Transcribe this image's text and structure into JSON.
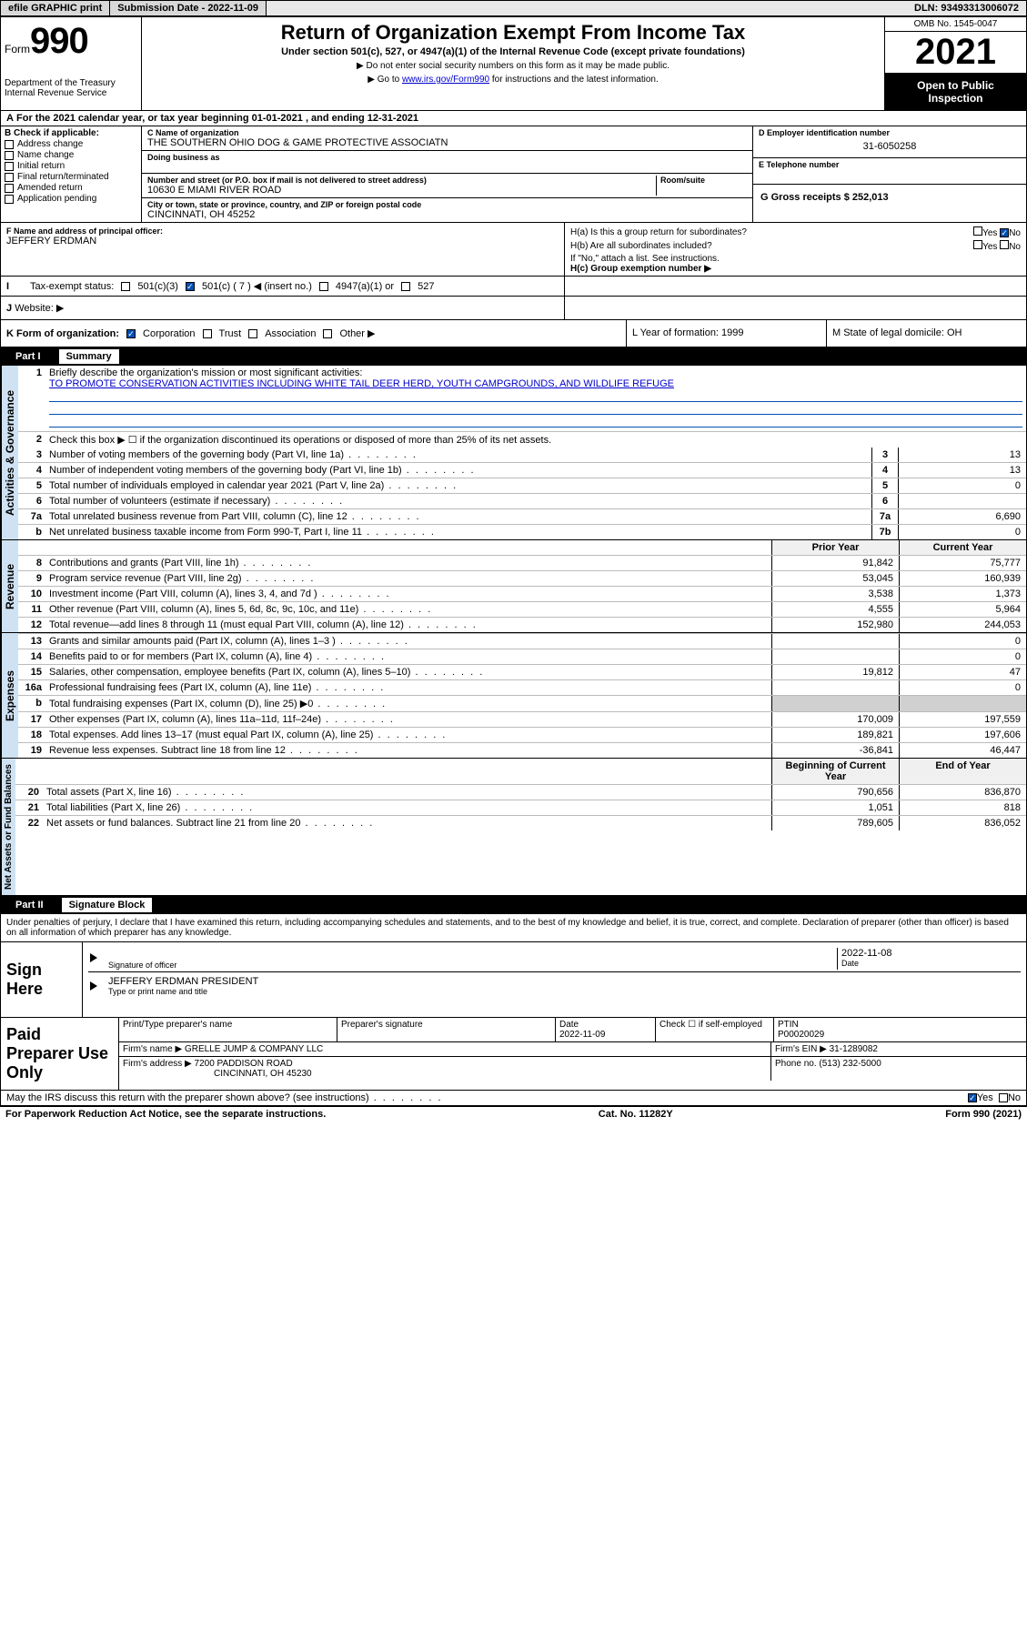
{
  "topbar": {
    "efile": "efile GRAPHIC print",
    "submission_label": "Submission Date - 2022-11-09",
    "dln_label": "DLN: 93493313006072"
  },
  "header": {
    "form_word": "Form",
    "form_num": "990",
    "dept": "Department of the Treasury\nInternal Revenue Service",
    "title": "Return of Organization Exempt From Income Tax",
    "sub1": "Under section 501(c), 527, or 4947(a)(1) of the Internal Revenue Code (except private foundations)",
    "sub2": "▶ Do not enter social security numbers on this form as it may be made public.",
    "sub3_pre": "▶ Go to ",
    "sub3_link": "www.irs.gov/Form990",
    "sub3_post": " for instructions and the latest information.",
    "omb": "OMB No. 1545-0047",
    "year": "2021",
    "inspect": "Open to Public Inspection"
  },
  "lineA": "For the 2021 calendar year, or tax year beginning 01-01-2021   , and ending 12-31-2021",
  "boxB": {
    "title": "B Check if applicable:",
    "items": [
      "Address change",
      "Name change",
      "Initial return",
      "Final return/terminated",
      "Amended return",
      "Application pending"
    ]
  },
  "boxC": {
    "name_label": "C Name of organization",
    "name": "THE SOUTHERN OHIO DOG & GAME PROTECTIVE ASSOCIATN",
    "dba_label": "Doing business as",
    "addr_label": "Number and street (or P.O. box if mail is not delivered to street address)",
    "room_label": "Room/suite",
    "addr": "10630 E MIAMI RIVER ROAD",
    "city_label": "City or town, state or province, country, and ZIP or foreign postal code",
    "city": "CINCINNATI, OH  45252"
  },
  "boxD": {
    "label": "D Employer identification number",
    "ein": "31-6050258",
    "E_label": "E Telephone number",
    "G_label": "G Gross receipts $ 252,013"
  },
  "boxF": {
    "label": "F Name and address of principal officer:",
    "name": "JEFFERY ERDMAN"
  },
  "boxH": {
    "a_label": "H(a)  Is this a group return for subordinates?",
    "a_yes": "Yes",
    "a_no": "No",
    "b_label": "H(b)  Are all subordinates included?",
    "b_note": "If \"No,\" attach a list. See instructions.",
    "c_label": "H(c)  Group exemption number ▶"
  },
  "boxI": {
    "label": "Tax-exempt status:",
    "opts": [
      "501(c)(3)",
      "501(c) ( 7 ) ◀ (insert no.)",
      "4947(a)(1) or",
      "527"
    ]
  },
  "boxJ": {
    "label": "Website: ▶"
  },
  "boxK": {
    "label": "K Form of organization:",
    "opts": [
      "Corporation",
      "Trust",
      "Association",
      "Other ▶"
    ],
    "L": "L Year of formation: 1999",
    "M": "M State of legal domicile: OH"
  },
  "part1": {
    "label": "Part I",
    "title": "Summary"
  },
  "activities": {
    "l1_label": "Briefly describe the organization's mission or most significant activities:",
    "l1_text": "TO PROMOTE CONSERVATION ACTIVITIES INCLUDING WHITE TAIL DEER HERD, YOUTH CAMPGROUNDS, AND WILDLIFE REFUGE",
    "l2": "Check this box ▶ ☐  if the organization discontinued its operations or disposed of more than 25% of its net assets.",
    "rows": [
      {
        "n": "3",
        "t": "Number of voting members of the governing body (Part VI, line 1a)",
        "box": "3",
        "v": "13"
      },
      {
        "n": "4",
        "t": "Number of independent voting members of the governing body (Part VI, line 1b)",
        "box": "4",
        "v": "13"
      },
      {
        "n": "5",
        "t": "Total number of individuals employed in calendar year 2021 (Part V, line 2a)",
        "box": "5",
        "v": "0"
      },
      {
        "n": "6",
        "t": "Total number of volunteers (estimate if necessary)",
        "box": "6",
        "v": ""
      },
      {
        "n": "7a",
        "t": "Total unrelated business revenue from Part VIII, column (C), line 12",
        "box": "7a",
        "v": "6,690"
      },
      {
        "n": "b",
        "t": "Net unrelated business taxable income from Form 990-T, Part I, line 11",
        "box": "7b",
        "v": "0"
      }
    ]
  },
  "revenue": {
    "head_prior": "Prior Year",
    "head_curr": "Current Year",
    "rows": [
      {
        "n": "8",
        "t": "Contributions and grants (Part VIII, line 1h)",
        "p": "91,842",
        "c": "75,777"
      },
      {
        "n": "9",
        "t": "Program service revenue (Part VIII, line 2g)",
        "p": "53,045",
        "c": "160,939"
      },
      {
        "n": "10",
        "t": "Investment income (Part VIII, column (A), lines 3, 4, and 7d )",
        "p": "3,538",
        "c": "1,373"
      },
      {
        "n": "11",
        "t": "Other revenue (Part VIII, column (A), lines 5, 6d, 8c, 9c, 10c, and 11e)",
        "p": "4,555",
        "c": "5,964"
      },
      {
        "n": "12",
        "t": "Total revenue—add lines 8 through 11 (must equal Part VIII, column (A), line 12)",
        "p": "152,980",
        "c": "244,053"
      }
    ]
  },
  "expenses": {
    "rows": [
      {
        "n": "13",
        "t": "Grants and similar amounts paid (Part IX, column (A), lines 1–3 )",
        "p": "",
        "c": "0"
      },
      {
        "n": "14",
        "t": "Benefits paid to or for members (Part IX, column (A), line 4)",
        "p": "",
        "c": "0"
      },
      {
        "n": "15",
        "t": "Salaries, other compensation, employee benefits (Part IX, column (A), lines 5–10)",
        "p": "19,812",
        "c": "47"
      },
      {
        "n": "16a",
        "t": "Professional fundraising fees (Part IX, column (A), line 11e)",
        "p": "",
        "c": "0"
      },
      {
        "n": "b",
        "t": "Total fundraising expenses (Part IX, column (D), line 25) ▶0",
        "p": "grey",
        "c": "grey"
      },
      {
        "n": "17",
        "t": "Other expenses (Part IX, column (A), lines 11a–11d, 11f–24e)",
        "p": "170,009",
        "c": "197,559"
      },
      {
        "n": "18",
        "t": "Total expenses. Add lines 13–17 (must equal Part IX, column (A), line 25)",
        "p": "189,821",
        "c": "197,606"
      },
      {
        "n": "19",
        "t": "Revenue less expenses. Subtract line 18 from line 12",
        "p": "-36,841",
        "c": "46,447"
      }
    ]
  },
  "netassets": {
    "head_prior": "Beginning of Current Year",
    "head_curr": "End of Year",
    "rows": [
      {
        "n": "20",
        "t": "Total assets (Part X, line 16)",
        "p": "790,656",
        "c": "836,870"
      },
      {
        "n": "21",
        "t": "Total liabilities (Part X, line 26)",
        "p": "1,051",
        "c": "818"
      },
      {
        "n": "22",
        "t": "Net assets or fund balances. Subtract line 21 from line 20",
        "p": "789,605",
        "c": "836,052"
      }
    ]
  },
  "part2": {
    "label": "Part II",
    "title": "Signature Block"
  },
  "sig": {
    "penalty": "Under penalties of perjury, I declare that I have examined this return, including accompanying schedules and statements, and to the best of my knowledge and belief, it is true, correct, and complete. Declaration of preparer (other than officer) is based on all information of which preparer has any knowledge.",
    "sign_here": "Sign Here",
    "sig_officer": "Signature of officer",
    "date": "2022-11-08",
    "date_label": "Date",
    "name": "JEFFERY ERDMAN  PRESIDENT",
    "name_label": "Type or print name and title"
  },
  "prep": {
    "label": "Paid Preparer Use Only",
    "h1": "Print/Type preparer's name",
    "h2": "Preparer's signature",
    "h3": "Date",
    "h3v": "2022-11-09",
    "h4": "Check ☐ if self-employed",
    "h5": "PTIN",
    "h5v": "P00020029",
    "firm_label": "Firm's name    ▶",
    "firm": "GRELLE JUMP & COMPANY LLC",
    "ein_label": "Firm's EIN ▶",
    "ein": "31-1289082",
    "addr_label": "Firm's address ▶",
    "addr1": "7200 PADDISON ROAD",
    "addr2": "CINCINNATI, OH  45230",
    "phone_label": "Phone no.",
    "phone": "(513) 232-5000"
  },
  "discuss": {
    "text": "May the IRS discuss this return with the preparer shown above? (see instructions)",
    "yes": "Yes",
    "no": "No"
  },
  "footer": {
    "left": "For Paperwork Reduction Act Notice, see the separate instructions.",
    "mid": "Cat. No. 11282Y",
    "right": "Form 990 (2021)"
  },
  "tabs": {
    "activities": "Activities & Governance",
    "revenue": "Revenue",
    "expenses": "Expenses",
    "netassets": "Net Assets or Fund Balances"
  }
}
